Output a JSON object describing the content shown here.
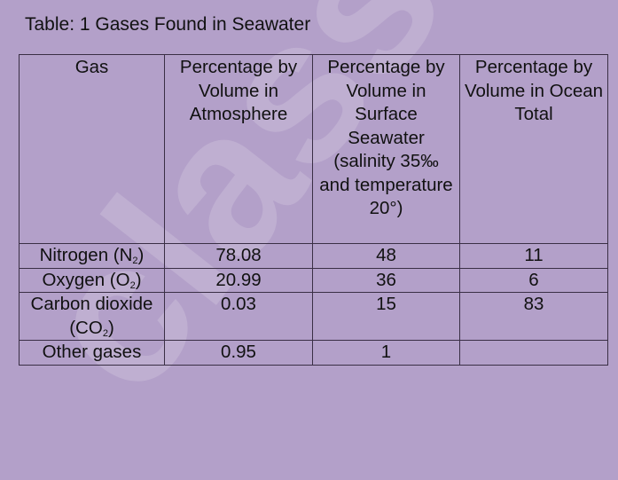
{
  "title": "Table: 1 Gases Found in Seawater",
  "watermark": "class.in",
  "table": {
    "headers": [
      "Gas",
      "Percentage by Volume in Atmosphere",
      "Percentage by Volume in Surface Seawater (salinity 35‰ and temperature 20°)",
      "Percentage by Volume in Ocean Total"
    ],
    "rows": [
      {
        "gas": "Nitrogen (N",
        "sub": "2",
        "gas_tail": ")",
        "atmosphere": "78.08",
        "surface": "48",
        "ocean": "11"
      },
      {
        "gas": "Oxygen (O",
        "sub": "2",
        "gas_tail": ")",
        "atmosphere": "20.99",
        "surface": "36",
        "ocean": "6"
      },
      {
        "gas": "Carbon dioxide (CO",
        "sub": "2",
        "gas_tail": ")",
        "atmosphere": "0.03",
        "surface": "15",
        "ocean": "83"
      },
      {
        "gas": "Other gases",
        "sub": "",
        "gas_tail": "",
        "atmosphere": "0.95",
        "surface": "1",
        "ocean": ""
      }
    ]
  }
}
